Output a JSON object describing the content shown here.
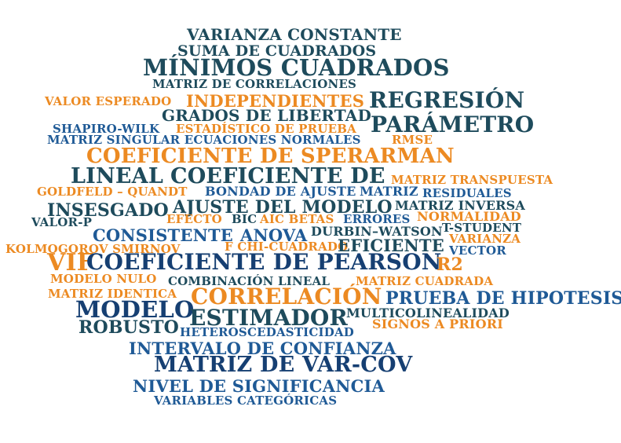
{
  "colors": {
    "dark_teal": "#1e4b5c",
    "dark_blue": "#163f72",
    "mid_blue": "#1f5a96",
    "orange": "#ec8a22",
    "background": "#ffffff"
  },
  "words": [
    {
      "text": "VARIANZA CONSTANTE",
      "color": "dark_teal"
    },
    {
      "text": "SUMA DE CUADRADOS",
      "color": "dark_teal"
    },
    {
      "text": "MÍNIMOS CUADRADOS",
      "color": "dark_teal"
    },
    {
      "text": "MATRIZ DE CORRELACIONES",
      "color": "dark_teal"
    },
    {
      "text": "VALOR ESPERADO",
      "color": "orange"
    },
    {
      "text": "INDEPENDIENTES",
      "color": "orange"
    },
    {
      "text": "REGRESIÓN",
      "color": "dark_teal"
    },
    {
      "text": "GRADOS DE LIBERTAD",
      "color": "dark_teal"
    },
    {
      "text": "SHAPIRO-WILK",
      "color": "mid_blue"
    },
    {
      "text": "ESTADÍSTICO DE PRUEBA",
      "color": "orange"
    },
    {
      "text": "PARÁMETRO",
      "color": "dark_teal"
    },
    {
      "text": "MATRIZ SINGULAR ECUACIONES NORMALES",
      "color": "mid_blue"
    },
    {
      "text": "RMSE",
      "color": "orange"
    },
    {
      "text": "COEFICIENTE DE SPERARMAN",
      "color": "orange"
    },
    {
      "text": "LINEAL",
      "color": "dark_teal"
    },
    {
      "text": "COEFICIENTE DE",
      "color": "dark_teal"
    },
    {
      "text": "MATRIZ TRANSPUESTA",
      "color": "orange"
    },
    {
      "text": "GOLDFELD – QUANDT",
      "color": "orange"
    },
    {
      "text": "BONDAD DE AJUSTE",
      "color": "mid_blue"
    },
    {
      "text": "MATRIZ",
      "color": "mid_blue"
    },
    {
      "text": "RESIDUALES",
      "color": "mid_blue"
    },
    {
      "text": "INSESGADO",
      "color": "dark_teal"
    },
    {
      "text": "AJUSTE DEL MODELO",
      "color": "dark_teal"
    },
    {
      "text": "MATRIZ INVERSA",
      "color": "dark_teal"
    },
    {
      "text": "EFECTO",
      "color": "orange"
    },
    {
      "text": "BIC",
      "color": "dark_teal"
    },
    {
      "text": "AIC BETAS",
      "color": "orange"
    },
    {
      "text": "ERRORES",
      "color": "mid_blue"
    },
    {
      "text": "NORMALIDAD",
      "color": "orange"
    },
    {
      "text": "VALOR-P",
      "color": "dark_teal"
    },
    {
      "text": "CONSISTENTE",
      "color": "mid_blue"
    },
    {
      "text": "ANOVA",
      "color": "mid_blue"
    },
    {
      "text": "DURBIN–WATSON",
      "color": "dark_teal"
    },
    {
      "text": "T-STUDENT",
      "color": "dark_teal"
    },
    {
      "text": "VARIANZA",
      "color": "orange"
    },
    {
      "text": "KOLMOGOROV SMIRNOV",
      "color": "orange"
    },
    {
      "text": "F CHI-CUADRADO",
      "color": "orange"
    },
    {
      "text": "EFICIENTE",
      "color": "dark_teal"
    },
    {
      "text": "VECTOR",
      "color": "mid_blue"
    },
    {
      "text": "VIF",
      "color": "orange"
    },
    {
      "text": "COEFICIENTE DE PEARSON",
      "color": "dark_blue"
    },
    {
      "text": "R2",
      "color": "orange"
    },
    {
      "text": "MODELO NULO",
      "color": "orange"
    },
    {
      "text": "COMBINACIÓN LINEAL",
      "color": "dark_teal"
    },
    {
      "text": "MATRIZ CUADRADA",
      "color": "orange"
    },
    {
      "text": "MATRIZ IDENTICA",
      "color": "orange"
    },
    {
      "text": "CORRELACIÓN",
      "color": "orange"
    },
    {
      "text": "PRUEBA DE HIPOTESIS",
      "color": "mid_blue"
    },
    {
      "text": "MODELO",
      "color": "dark_blue"
    },
    {
      "text": "ESTIMADOR",
      "color": "dark_teal"
    },
    {
      "text": "MULTICOLINEALIDAD",
      "color": "dark_teal"
    },
    {
      "text": "SIGNOS A PRIORI",
      "color": "orange"
    },
    {
      "text": "ROBUSTO",
      "color": "dark_teal"
    },
    {
      "text": "HETEROSCEDASTICIDAD",
      "color": "mid_blue"
    },
    {
      "text": "INTERVALO DE CONFIANZA",
      "color": "mid_blue"
    },
    {
      "text": "MATRIZ DE VAR-COV",
      "color": "dark_blue"
    },
    {
      "text": "NIVEL DE SIGNIFICANCIA",
      "color": "mid_blue"
    },
    {
      "text": "VARIABLES CATEGÓRICAS",
      "color": "mid_blue"
    }
  ]
}
